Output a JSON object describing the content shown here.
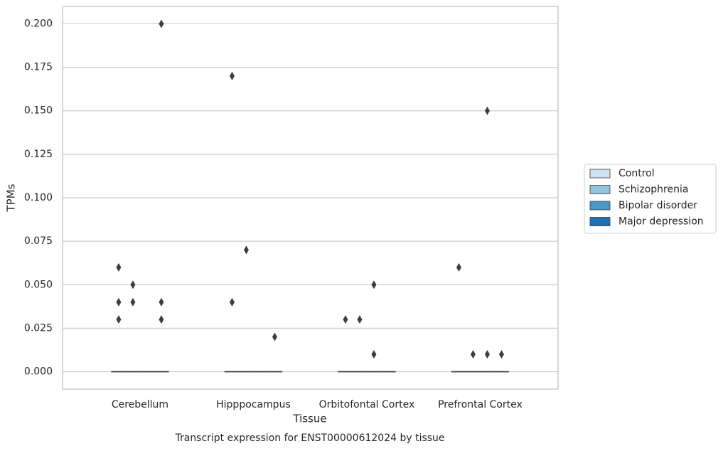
{
  "chart_data": {
    "type": "box",
    "title": "Transcript expression for ENST00000612024 by tissue",
    "x_label": "Tissue",
    "y_label": "TPMs",
    "categories": [
      "Cerebellum",
      "Hipppocampus",
      "Orbitofontal Cortex",
      "Prefrontal Cortex"
    ],
    "ylim": [
      -0.01,
      0.21
    ],
    "yticks": [
      {
        "value": 0,
        "label": "0.000"
      },
      {
        "value": 0.025,
        "label": "0.025"
      },
      {
        "value": 0.05,
        "label": "0.050"
      },
      {
        "value": 0.075,
        "label": "0.075"
      },
      {
        "value": 0.1,
        "label": "0.100"
      },
      {
        "value": 0.125,
        "label": "0.125"
      },
      {
        "value": 0.15,
        "label": "0.150"
      },
      {
        "value": 0.175,
        "label": "0.175"
      },
      {
        "value": 0.2,
        "label": "0.200"
      }
    ],
    "grid": true,
    "legend": "right",
    "series": [
      {
        "name": "Control",
        "color": "#d0e1f2",
        "median": [
          0,
          0,
          0,
          0
        ],
        "q1": [
          0,
          0,
          0,
          0
        ],
        "q3": [
          0,
          0,
          0,
          0
        ],
        "whislo": [
          0,
          0,
          0,
          0
        ],
        "whishi": [
          0,
          0,
          0,
          0
        ],
        "fliers": [
          [
            0.06,
            0.04,
            0.03
          ],
          [
            0.17,
            0.04
          ],
          [
            0.03
          ],
          [
            0.06
          ]
        ]
      },
      {
        "name": "Schizophrenia",
        "color": "#94c4df",
        "median": [
          0,
          0,
          0,
          0
        ],
        "q1": [
          0,
          0,
          0,
          0
        ],
        "q3": [
          0,
          0,
          0,
          0
        ],
        "whislo": [
          0,
          0,
          0,
          0
        ],
        "whishi": [
          0,
          0,
          0,
          0
        ],
        "fliers": [
          [
            0.05,
            0.04
          ],
          [
            0.07
          ],
          [
            0.03
          ],
          [
            0.01
          ]
        ]
      },
      {
        "name": "Bipolar disorder",
        "color": "#4a98c9",
        "median": [
          0,
          0,
          0,
          0
        ],
        "q1": [
          0,
          0,
          0,
          0
        ],
        "q3": [
          0,
          0,
          0,
          0
        ],
        "whislo": [
          0,
          0,
          0,
          0
        ],
        "whishi": [
          0,
          0,
          0,
          0
        ],
        "fliers": [
          [],
          [],
          [
            0.05,
            0.01
          ],
          [
            0.15,
            0.01
          ]
        ]
      },
      {
        "name": "Major depression",
        "color": "#2171b5",
        "median": [
          0,
          0,
          0,
          0
        ],
        "q1": [
          0,
          0,
          0,
          0
        ],
        "q3": [
          0,
          0,
          0,
          0
        ],
        "whislo": [
          0,
          0,
          0,
          0
        ],
        "whishi": [
          0,
          0,
          0,
          0
        ],
        "fliers": [
          [
            0.2,
            0.04,
            0.03
          ],
          [
            0.02
          ],
          [],
          [
            0.01
          ]
        ]
      }
    ]
  }
}
